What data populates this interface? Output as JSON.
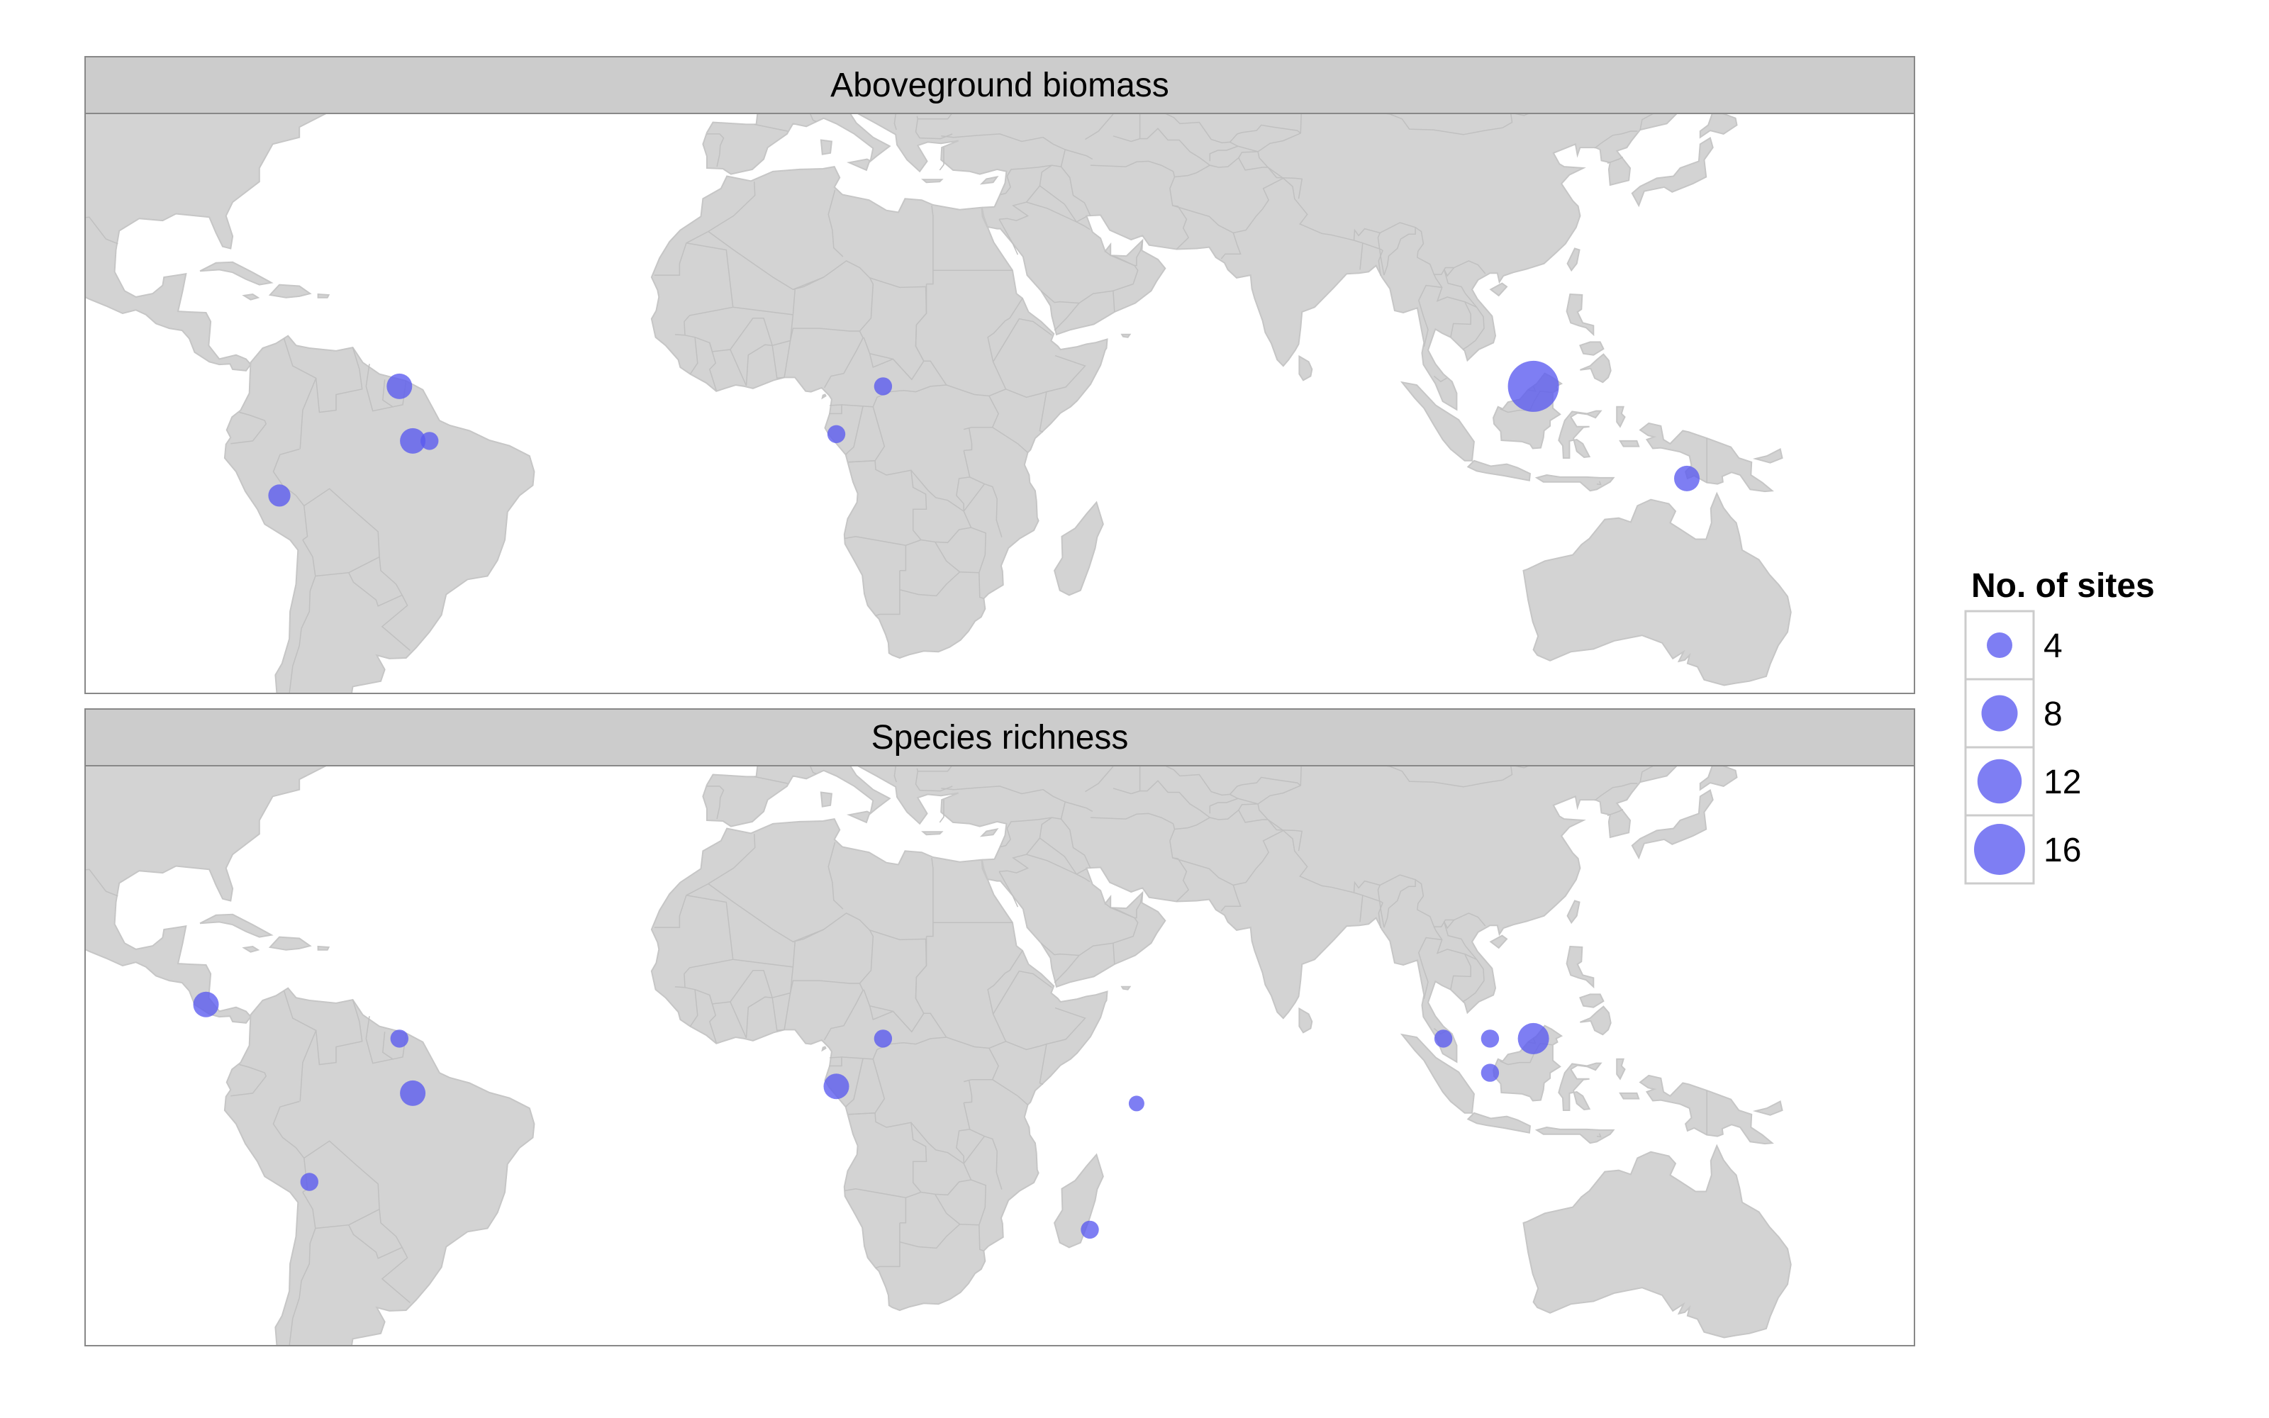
{
  "chart_data": {
    "type": "scatter",
    "x_axis": {
      "quantity": "longitude",
      "range": [
        -100,
        170
      ]
    },
    "y_axis": {
      "quantity": "latitude",
      "range": [
        -40,
        45
      ]
    },
    "grid": false,
    "legend": {
      "title": "No. of sites",
      "placement": "right",
      "size_breaks": [
        4,
        8,
        12,
        16
      ]
    },
    "point_color": "#5a5af0",
    "land_color": "#d3d3d3",
    "panels": [
      {
        "title": "Aboveground biomass",
        "points": [
          {
            "lon": -55,
            "lat": 5,
            "n": 4
          },
          {
            "lon": -53,
            "lat": -3,
            "n": 4
          },
          {
            "lon": -50.5,
            "lat": -3,
            "n": 2
          },
          {
            "lon": -73,
            "lat": -11,
            "n": 3
          },
          {
            "lon": 10.5,
            "lat": -2,
            "n": 2
          },
          {
            "lon": 17.5,
            "lat": 5,
            "n": 2
          },
          {
            "lon": 115,
            "lat": 5,
            "n": 16
          },
          {
            "lon": 138,
            "lat": -8.5,
            "n": 4
          }
        ]
      },
      {
        "title": "Species richness",
        "points": [
          {
            "lon": -84,
            "lat": 10,
            "n": 4
          },
          {
            "lon": -55,
            "lat": 5,
            "n": 2
          },
          {
            "lon": -53,
            "lat": -3,
            "n": 4
          },
          {
            "lon": -68.5,
            "lat": -16,
            "n": 2
          },
          {
            "lon": 10.5,
            "lat": -2,
            "n": 4
          },
          {
            "lon": 17.5,
            "lat": 5,
            "n": 2
          },
          {
            "lon": 55.5,
            "lat": -4.5,
            "n": 1.5
          },
          {
            "lon": 48.5,
            "lat": -23,
            "n": 2
          },
          {
            "lon": 101.5,
            "lat": 5,
            "n": 2
          },
          {
            "lon": 108.5,
            "lat": 5,
            "n": 2
          },
          {
            "lon": 108.5,
            "lat": 0,
            "n": 2
          },
          {
            "lon": 115,
            "lat": 5,
            "n": 6
          }
        ]
      }
    ]
  }
}
